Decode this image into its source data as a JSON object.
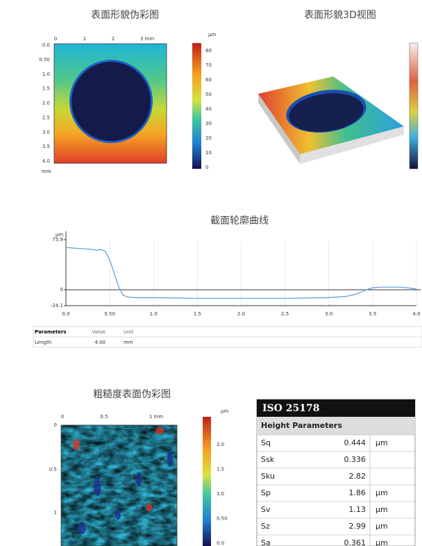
{
  "color_map": {
    "title": "表面形貌伪彩图",
    "top_labels": [
      "0",
      "1",
      "2",
      "3 mm"
    ],
    "left_labels": [
      "0.0",
      "0.50",
      "1.0",
      "1.5",
      "2.0",
      "2.5",
      "3.0",
      "3.5",
      "4.0"
    ],
    "axis_unit": "mm",
    "colorbar_unit": "μm",
    "colorbar_labels": [
      "80",
      "70",
      "60",
      "50",
      "40",
      "30",
      "20",
      "10",
      "0"
    ]
  },
  "view_3d": {
    "title": "表面形貌3D视图"
  },
  "chart_data": {
    "type": "line",
    "title": "截面轮廓曲线",
    "y_label": "μm",
    "color": "#5b9bd5",
    "grid": true,
    "x": [
      0,
      0.1,
      0.2,
      0.3,
      0.35,
      0.4,
      0.45,
      0.5,
      0.55,
      0.6,
      0.65,
      0.7,
      0.8,
      1.0,
      1.5,
      2.0,
      2.5,
      3.0,
      3.2,
      3.3,
      3.4,
      3.45,
      3.5,
      3.6,
      3.8,
      3.9,
      4.0
    ],
    "values": [
      64,
      63,
      62,
      61,
      60,
      61,
      58,
      45,
      25,
      5,
      -8,
      -11,
      -12,
      -12,
      -13,
      -13,
      -13,
      -12,
      -10,
      -7,
      -2,
      1,
      3,
      4,
      4,
      3,
      1
    ],
    "xlim": [
      0,
      4
    ],
    "ylim": [
      -24.1,
      75.9
    ],
    "xticks": [
      {
        "value": 0,
        "label": "0.0"
      },
      {
        "value": 0.5,
        "label": "0.50"
      },
      {
        "value": 1,
        "label": "1.0"
      },
      1.5,
      {
        "value": 2,
        "label": "2.0"
      },
      2.5,
      {
        "value": 3,
        "label": "3.0"
      },
      3.5,
      {
        "value": 4,
        "label": "4.0"
      }
    ],
    "yticks": [
      -24.1,
      0,
      75.9
    ]
  },
  "param_table": {
    "headers": [
      "Parameters",
      "Value",
      "Unit"
    ],
    "rows": [
      [
        "Length",
        "4.00",
        "mm"
      ]
    ]
  },
  "roughness_map": {
    "title": "粗糙度表面伪彩图",
    "top_labels": [
      "0",
      "0.5",
      "1 mm"
    ],
    "left_labels": [
      "0",
      "0.5",
      "1"
    ],
    "colorbar_unit": "μm",
    "colorbar_labels": [
      "2.0",
      "1.5",
      "1.0",
      "0.50",
      "0.0"
    ]
  },
  "iso_table": {
    "title": "ISO 25178",
    "subtitle": "Height Parameters",
    "rows": [
      [
        "Sq",
        "0.444",
        "μm"
      ],
      [
        "Ssk",
        "0.336"
      ],
      [
        "Sku",
        "2.82"
      ],
      [
        "Sp",
        "1.86",
        "μm"
      ],
      [
        "Sv",
        "1.13",
        "μm"
      ],
      [
        "Sz",
        "2.99",
        "μm"
      ],
      [
        "Sa",
        "0.361",
        "μm"
      ]
    ]
  }
}
